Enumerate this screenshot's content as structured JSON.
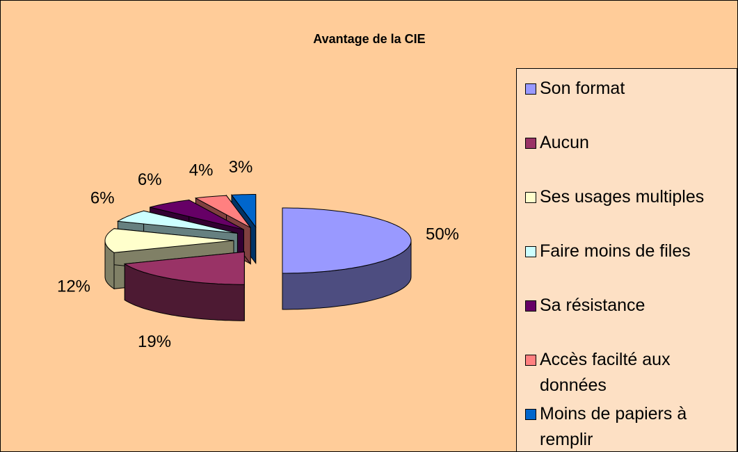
{
  "chart_data": {
    "type": "pie3d",
    "title": "Avantage de la CIE",
    "categories": [
      "Son format",
      "Aucun",
      "Ses usages multiples",
      "Faire moins de files",
      "Sa résistance",
      "Accès facilté aux données",
      "Moins de papiers à remplir"
    ],
    "values": [
      50,
      19,
      12,
      6,
      6,
      4,
      3
    ],
    "value_labels": [
      "50%",
      "19%",
      "12%",
      "6%",
      "6%",
      "4%",
      "3%"
    ],
    "colors": [
      "#9999ff",
      "#993366",
      "#ffffcc",
      "#ccffff",
      "#660066",
      "#ff8080",
      "#0066cc"
    ],
    "legend": "right"
  }
}
